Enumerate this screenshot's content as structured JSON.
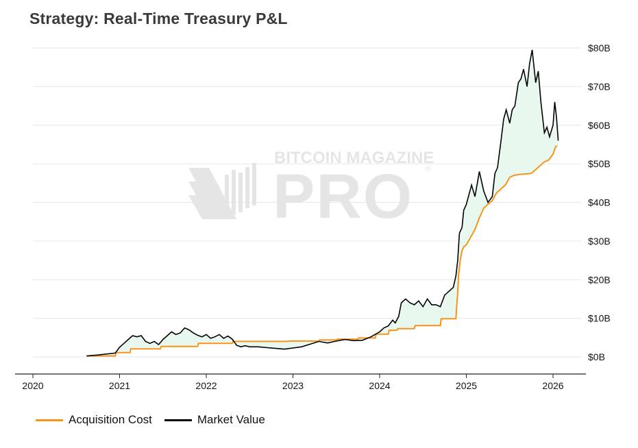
{
  "title": "Strategy: Real-Time Treasury P&L",
  "watermark": {
    "top": "BITCOIN MAGAZINE",
    "main": "PRO",
    "mark": "®"
  },
  "colors": {
    "acquisition": "#f7931a",
    "market": "#000000",
    "fill": "#e8f8ef",
    "fill_loss": "#f3e3ea",
    "grid": "#e6e6e6"
  },
  "legend": [
    {
      "label": "Acquisition Cost",
      "color": "#f7931a"
    },
    {
      "label": "Market Value",
      "color": "#000000"
    }
  ],
  "chart_data": {
    "type": "line",
    "title": "Strategy: Real-Time Treasury P&L",
    "xlabel": "",
    "ylabel": "",
    "xlim": [
      2020.0,
      2026.3
    ],
    "ylim": [
      0,
      80
    ],
    "x_ticks": [
      2020,
      2021,
      2022,
      2023,
      2024,
      2025,
      2026
    ],
    "x_tick_labels": [
      "2020",
      "2021",
      "2022",
      "2023",
      "2024",
      "2025",
      "2026"
    ],
    "y_ticks": [
      0,
      10,
      20,
      30,
      40,
      50,
      60,
      70,
      80
    ],
    "y_tick_labels": [
      "$0B",
      "$10B",
      "$20B",
      "$30B",
      "$40B",
      "$50B",
      "$60B",
      "$70B",
      "$80B"
    ],
    "y_axis_side": "right",
    "grid": true,
    "series": [
      {
        "name": "Acquisition Cost",
        "x": [
          2020.62,
          2020.95,
          2020.96,
          2021.12,
          2021.13,
          2021.47,
          2021.48,
          2021.9,
          2021.91,
          2022.3,
          2022.31,
          2022.55,
          2022.56,
          2022.95,
          2022.96,
          2023.3,
          2023.31,
          2023.5,
          2023.51,
          2023.75,
          2023.76,
          2023.95,
          2023.96,
          2024.1,
          2024.11,
          2024.2,
          2024.21,
          2024.4,
          2024.41,
          2024.7,
          2024.71,
          2024.88,
          2024.89,
          2024.9,
          2024.91,
          2024.93,
          2024.95,
          2024.97,
          2025.0,
          2025.05,
          2025.1,
          2025.15,
          2025.2,
          2025.25,
          2025.3,
          2025.35,
          2025.4,
          2025.45,
          2025.5,
          2025.55,
          2025.6,
          2025.65,
          2025.7,
          2025.75,
          2025.8,
          2025.85,
          2025.9,
          2025.95,
          2026.0,
          2026.03,
          2026.05
        ],
        "values": [
          0.25,
          0.25,
          1.1,
          1.1,
          2.1,
          2.1,
          2.7,
          2.7,
          3.5,
          3.5,
          4.0,
          4.0,
          4.0,
          4.0,
          4.1,
          4.1,
          4.4,
          4.4,
          4.6,
          4.6,
          4.9,
          4.9,
          5.9,
          5.9,
          6.9,
          6.9,
          7.3,
          7.3,
          8.1,
          8.1,
          9.9,
          9.9,
          13.5,
          16.5,
          21.0,
          25.0,
          27.5,
          28.5,
          29.0,
          31.0,
          33.0,
          36.0,
          38.5,
          39.5,
          40.5,
          42.5,
          43.5,
          44.5,
          46.5,
          47.0,
          47.2,
          47.3,
          47.4,
          47.5,
          48.5,
          49.5,
          50.5,
          51.0,
          52.5,
          54.5,
          54.6
        ]
      },
      {
        "name": "Market Value",
        "x": [
          2020.62,
          2020.75,
          2020.95,
          2021.0,
          2021.05,
          2021.1,
          2021.15,
          2021.2,
          2021.25,
          2021.3,
          2021.35,
          2021.4,
          2021.45,
          2021.5,
          2021.55,
          2021.6,
          2021.65,
          2021.7,
          2021.75,
          2021.8,
          2021.85,
          2021.9,
          2021.95,
          2022.0,
          2022.05,
          2022.1,
          2022.15,
          2022.2,
          2022.25,
          2022.3,
          2022.35,
          2022.4,
          2022.45,
          2022.5,
          2022.6,
          2022.7,
          2022.8,
          2022.9,
          2023.0,
          2023.1,
          2023.2,
          2023.3,
          2023.4,
          2023.5,
          2023.6,
          2023.7,
          2023.8,
          2023.9,
          2024.0,
          2024.05,
          2024.1,
          2024.15,
          2024.18,
          2024.22,
          2024.25,
          2024.3,
          2024.35,
          2024.4,
          2024.45,
          2024.5,
          2024.55,
          2024.6,
          2024.65,
          2024.7,
          2024.75,
          2024.8,
          2024.85,
          2024.88,
          2024.9,
          2024.92,
          2024.95,
          2024.97,
          2025.0,
          2025.03,
          2025.06,
          2025.1,
          2025.15,
          2025.2,
          2025.25,
          2025.3,
          2025.33,
          2025.36,
          2025.4,
          2025.43,
          2025.46,
          2025.5,
          2025.53,
          2025.56,
          2025.6,
          2025.63,
          2025.66,
          2025.7,
          2025.73,
          2025.76,
          2025.8,
          2025.83,
          2025.86,
          2025.9,
          2025.93,
          2025.96,
          2026.0,
          2026.02,
          2026.04,
          2026.06
        ],
        "values": [
          0.25,
          0.5,
          1.0,
          2.5,
          3.5,
          4.5,
          5.5,
          5.2,
          5.5,
          4.0,
          3.5,
          4.0,
          3.2,
          4.5,
          5.5,
          6.5,
          5.8,
          6.2,
          7.5,
          7.0,
          6.2,
          5.6,
          5.2,
          5.8,
          4.8,
          5.2,
          5.8,
          4.8,
          5.4,
          4.6,
          3.0,
          2.6,
          2.9,
          2.6,
          2.6,
          2.4,
          2.2,
          2.0,
          2.3,
          2.6,
          3.3,
          4.0,
          3.6,
          4.1,
          4.5,
          4.2,
          4.3,
          5.2,
          6.5,
          7.5,
          8.0,
          9.5,
          8.8,
          10.5,
          14.0,
          15.0,
          14.0,
          13.5,
          14.5,
          13.0,
          15.0,
          13.5,
          13.5,
          13.0,
          16.0,
          17.0,
          18.0,
          21.0,
          25.0,
          32.0,
          33.5,
          38.0,
          39.5,
          42.0,
          44.5,
          41.5,
          48.0,
          43.0,
          40.0,
          41.5,
          47.5,
          49.0,
          56.0,
          61.5,
          64.0,
          60.5,
          64.0,
          65.0,
          71.0,
          72.0,
          74.5,
          70.0,
          76.0,
          79.5,
          71.0,
          74.0,
          66.0,
          58.0,
          59.5,
          57.0,
          60.0,
          66.0,
          62.0,
          56.0
        ]
      }
    ]
  }
}
